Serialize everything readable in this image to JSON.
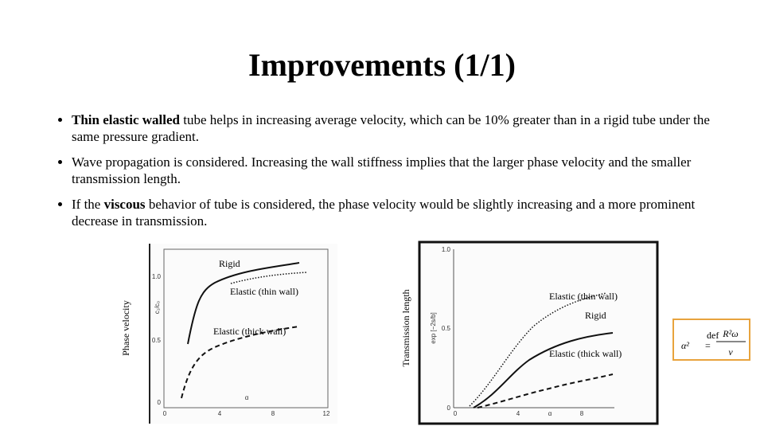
{
  "title": "Improvements (1/1)",
  "bullets": [
    {
      "bold": "Thin elastic walled",
      "text": " tube helps in increasing average velocity, which can be 10% greater than in a rigid tube under the same pressure gradient."
    },
    {
      "text": "Wave propagation is considered. Increasing the wall stiffness implies that the larger phase velocity and the smaller transmission length."
    },
    {
      "before": "If the ",
      "bold": "viscous",
      "text": " behavior of tube is considered, the phase velocity would be slightly increasing and a more prominent decrease in transmission."
    }
  ],
  "figure_left": {
    "y_label": "Phase velocity",
    "inner_y_label": "c₁/c₀",
    "x_label": "α",
    "yticks": [
      "1.0",
      "0.5",
      "0"
    ],
    "xticks": [
      "0",
      "4",
      "8",
      "12"
    ],
    "curves": [
      "Rigid",
      "Elastic (thin wall)",
      "Elastic (thick wall)"
    ]
  },
  "figure_right": {
    "y_label": "Transmission length",
    "inner_y_label": "exp [−2s/b]",
    "x_label": "α",
    "yticks": [
      "1.0",
      "0.5",
      "0"
    ],
    "xticks": [
      "0",
      "4",
      "8"
    ],
    "curves": [
      "Elastic (thin wall)",
      "Rigid",
      "Elastic (thick wall)"
    ]
  },
  "formula": {
    "lhs": "α²",
    "def": "def",
    "eq": "=",
    "numerator": "R²ω",
    "denominator": "ν"
  }
}
